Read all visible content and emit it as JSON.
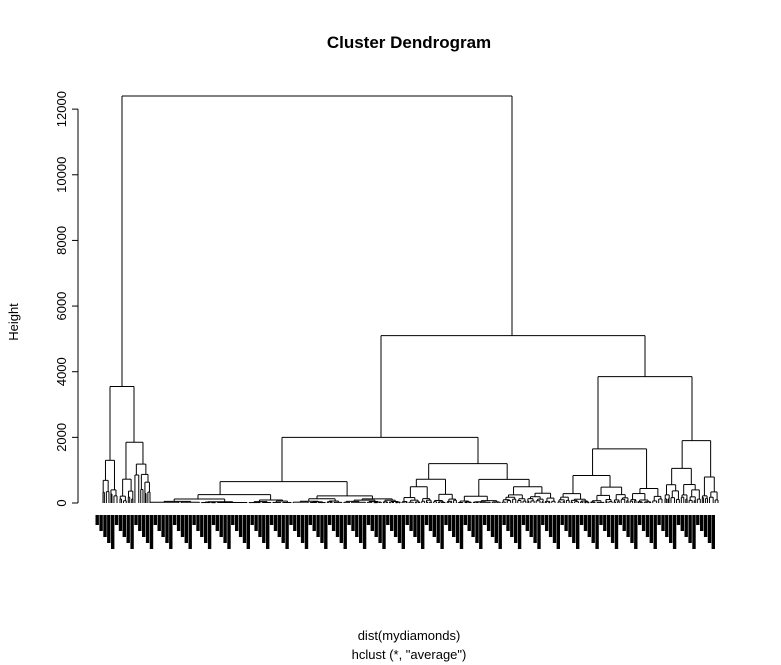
{
  "chart_data": {
    "type": "dendrogram",
    "title": "Cluster Dendrogram",
    "ylabel": "Height",
    "xlabel": "dist(mydiamonds)",
    "sub": "hclust (*, \"average\")",
    "yticks": [
      0,
      2000,
      4000,
      6000,
      8000,
      10000,
      12000
    ],
    "ylim": [
      0,
      12500
    ],
    "merges": [
      {
        "height": 12400,
        "children": [
          "A",
          "B"
        ]
      },
      {
        "height": 3550,
        "id": "A",
        "children": [
          "A1",
          "A2"
        ]
      },
      {
        "height": 1300,
        "id": "A1"
      },
      {
        "height": 1850,
        "id": "A2"
      },
      {
        "height": 5100,
        "id": "B",
        "children": [
          "C",
          "D"
        ]
      },
      {
        "height": 2000,
        "id": "C",
        "children": [
          "C1",
          "C2"
        ]
      },
      {
        "height": 650,
        "id": "C1"
      },
      {
        "height": 1200,
        "id": "C2"
      },
      {
        "height": 3850,
        "id": "D",
        "children": [
          "D1",
          "D2"
        ]
      },
      {
        "height": 1650,
        "id": "D1"
      },
      {
        "height": 1900,
        "id": "D2"
      }
    ]
  }
}
